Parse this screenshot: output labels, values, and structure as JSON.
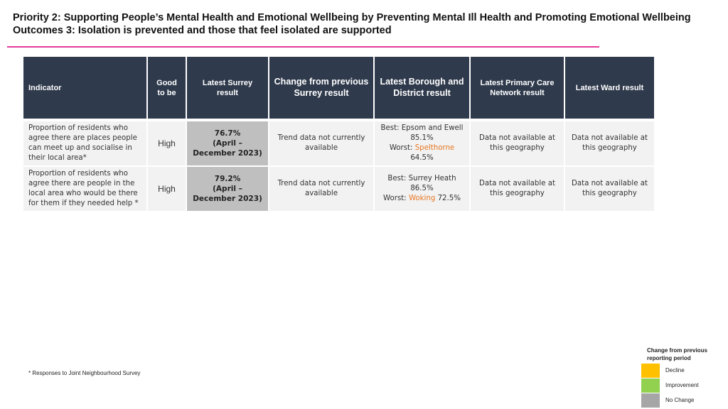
{
  "header": {
    "title_line1": "Priority 2: Supporting People’s Mental Health and Emotional Wellbeing by Preventing Mental Ill Health and Promoting Emotional Wellbeing",
    "title_line2": "Outcomes 3: Isolation is prevented and those that feel isolated are supported"
  },
  "table": {
    "headers": {
      "indicator": "Indicator",
      "good": "Good to be",
      "latest_surrey": "Latest Surrey result",
      "change": "Change from previous Surrey result",
      "borough": "Latest Borough and District result",
      "pcn": "Latest Primary Care Network result",
      "ward": "Latest Ward result"
    },
    "rows": [
      {
        "indicator": "Proportion of residents who agree there are places people can meet up and socialise in their local area*",
        "good": "High",
        "latest_value": "76.7%",
        "latest_period": "(April – December 2023)",
        "change": "Trend data not currently available",
        "borough_best": "Best: Epsom and Ewell 85.1%",
        "borough_worst_label": "Worst:",
        "borough_worst_name": "Spelthorne",
        "borough_worst_value": "64.5%",
        "pcn": "Data not available at this geography",
        "ward": "Data not available at this geography"
      },
      {
        "indicator": "Proportion of residents who agree there are people in the local area who would be there for them if they needed help *",
        "good": "High",
        "latest_value": "79.2%",
        "latest_period": "(April – December 2023)",
        "change": "Trend data not currently available",
        "borough_best": "Best: Surrey Heath 86.5%",
        "borough_worst_label": "Worst:",
        "borough_worst_name": "Woking",
        "borough_worst_value": "72.5%",
        "pcn": "Data not available at this geography",
        "ward": "Data not available at this geography"
      }
    ]
  },
  "footnote": "* Responses to Joint Neighbourhood Survey",
  "legend": {
    "title": "Change from previous reporting period",
    "items": [
      {
        "label": "Decline",
        "color": "#ffc000"
      },
      {
        "label": "Improvement",
        "color": "#92d050"
      },
      {
        "label": "No Change",
        "color": "#a6a6a6"
      }
    ]
  },
  "colors": {
    "header_bg": "#2f3a4c",
    "accent_rule": "#e6399b",
    "worst_highlight": "#e87722",
    "latest_cell_bg": "#bfbfbf"
  }
}
